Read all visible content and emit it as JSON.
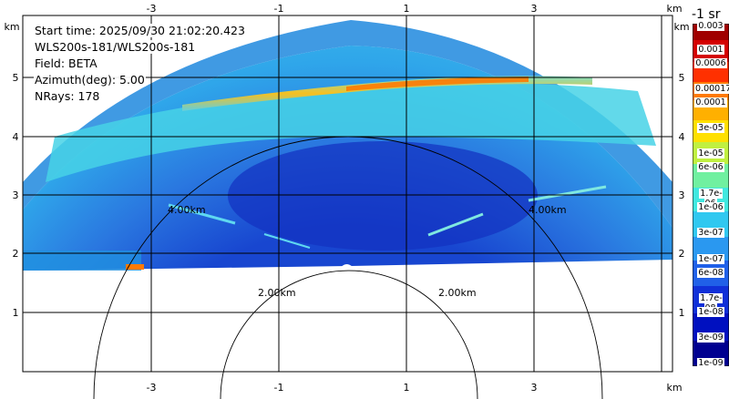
{
  "info": {
    "start_time": "Start time: 2025/09/30 21:02:20.423",
    "instrument": "WLS200s-181/WLS200s-181",
    "field": "Field: BETA",
    "azimuth": "Azimuth(deg): 5.00",
    "nrays": "NRays: 178"
  },
  "axes": {
    "x_ticks_top": [
      "-3",
      "-1",
      "1",
      "3"
    ],
    "x_ticks_bottom": [
      "-3",
      "-1",
      "1",
      "3"
    ],
    "x_unit": "km",
    "y_ticks_left": [
      "5",
      "4",
      "3",
      "2",
      "1"
    ],
    "y_ticks_right": [
      "5",
      "4",
      "3",
      "2",
      "1"
    ],
    "y_unit": "km"
  },
  "range_rings": {
    "label_inner_left": "2.00km",
    "label_inner_right": "2.00km",
    "label_outer_left": "4.00km",
    "label_outer_right": "4.00km"
  },
  "colorbar": {
    "title": "-1 sr",
    "labels": [
      "0.003",
      "0.001",
      "0.0006",
      "0.00017",
      "0.0001",
      "3e-05",
      "1e-05",
      "6e-06",
      "1.7e-06",
      "1e-06",
      "3e-07",
      "1e-07",
      "6e-08",
      "1.7e-08",
      "1e-08",
      "3e-09",
      "1e-09"
    ]
  },
  "colors": {
    "background": "#ffffff",
    "low_backscatter": "#1f5fd6",
    "mid_backscatter": "#39c8e8",
    "high_backscatter": "#ff8a00"
  }
}
